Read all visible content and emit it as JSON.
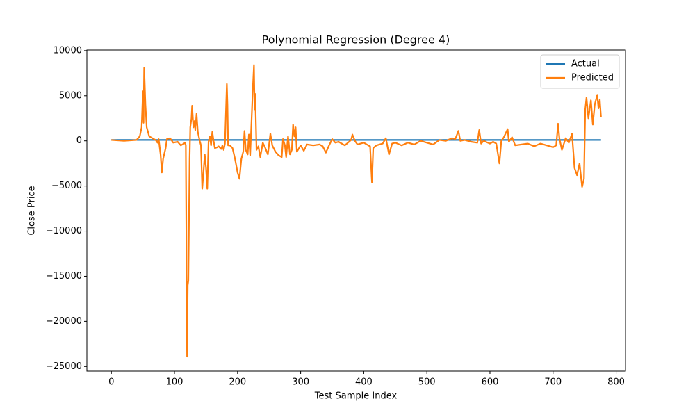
{
  "chart_data": {
    "type": "line",
    "title": "Polynomial Regression (Degree 4)",
    "x_label": "Test Sample Index",
    "y_label": "Close Price",
    "xlim": [
      -38.8,
      814.8
    ],
    "ylim": [
      -25517,
      10067
    ],
    "xticks": [
      0,
      100,
      200,
      300,
      400,
      500,
      600,
      700,
      800
    ],
    "yticks": [
      {
        "value": -25000,
        "label": "−25000"
      },
      {
        "value": -20000,
        "label": "−20000"
      },
      {
        "value": -15000,
        "label": "−15000"
      },
      {
        "value": -10000,
        "label": "−10000"
      },
      {
        "value": -5000,
        "label": "−5000"
      },
      0,
      5000,
      10000
    ],
    "legend": "upper right",
    "series": [
      {
        "name": "Actual",
        "color": "#1f77b4",
        "x": [
          0,
          776
        ],
        "values": [
          100,
          100
        ]
      },
      {
        "name": "Predicted",
        "color": "#ff7f0e",
        "x": [
          0,
          10,
          20,
          30,
          40,
          45,
          48,
          50,
          51,
          52,
          54,
          56,
          60,
          65,
          70,
          73,
          75,
          78,
          80,
          82,
          86,
          88,
          93,
          98,
          105,
          110,
          115,
          117,
          118,
          119,
          120,
          121,
          122,
          124,
          125,
          127,
          128,
          130,
          132,
          133,
          135,
          137,
          140,
          142,
          144,
          146,
          148,
          150,
          152,
          154,
          156,
          158,
          160,
          162,
          164,
          168,
          170,
          174,
          176,
          178,
          180,
          183,
          184,
          185,
          188,
          192,
          196,
          200,
          203,
          206,
          209,
          211,
          213,
          216,
          218,
          220,
          224,
          226,
          227,
          228,
          230,
          233,
          236,
          240,
          244,
          248,
          252,
          255,
          260,
          265,
          270,
          272,
          275,
          277,
          280,
          283,
          286,
          288,
          290,
          292,
          294,
          300,
          305,
          310,
          320,
          330,
          335,
          340,
          345,
          350,
          355,
          360,
          370,
          380,
          382,
          386,
          390,
          395,
          400,
          405,
          410,
          413,
          415,
          420,
          430,
          435,
          440,
          445,
          450,
          460,
          470,
          480,
          490,
          500,
          510,
          520,
          530,
          540,
          545,
          550,
          553,
          560,
          570,
          580,
          583,
          586,
          590,
          600,
          605,
          610,
          615,
          618,
          622,
          628,
          630,
          635,
          640,
          650,
          660,
          670,
          680,
          690,
          700,
          705,
          708,
          710,
          714,
          720,
          725,
          730,
          734,
          738,
          742,
          746,
          749,
          751,
          753,
          756,
          760,
          763,
          766,
          770,
          772,
          774,
          776
        ],
        "values": [
          100,
          50,
          0,
          50,
          100,
          500,
          1500,
          5500,
          2000,
          8100,
          4000,
          1500,
          500,
          300,
          100,
          -200,
          200,
          -1500,
          -3500,
          -2000,
          -800,
          200,
          300,
          -200,
          -100,
          -500,
          -300,
          -200,
          -500,
          -12000,
          -23900,
          -16000,
          -15500,
          -2000,
          1500,
          2500,
          3900,
          1500,
          2200,
          1200,
          3000,
          1000,
          0,
          -500,
          -5300,
          -3500,
          -1500,
          -3000,
          -5300,
          -100,
          500,
          -500,
          1000,
          0,
          -800,
          -700,
          -600,
          -900,
          -500,
          -1000,
          -300,
          6300,
          4000,
          -500,
          -500,
          -800,
          -2000,
          -3500,
          -4200,
          -2000,
          -1200,
          1100,
          -1000,
          -1500,
          700,
          -1600,
          5500,
          8400,
          3500,
          5200,
          -1000,
          -600,
          -1800,
          -200,
          -800,
          -1500,
          800,
          -500,
          -1200,
          -1600,
          -1800,
          200,
          -500,
          -1800,
          500,
          -1500,
          -1000,
          1800,
          500,
          1500,
          -1200,
          -500,
          -1100,
          -400,
          -500,
          -400,
          -600,
          -1300,
          -500,
          200,
          -200,
          -100,
          -500,
          100,
          700,
          0,
          -400,
          -300,
          -200,
          -400,
          -600,
          -4600,
          -800,
          -500,
          -300,
          300,
          -1500,
          -300,
          -200,
          -500,
          -200,
          -400,
          0,
          -200,
          -400,
          100,
          0,
          300,
          200,
          1100,
          0,
          100,
          -100,
          -200,
          1200,
          -300,
          0,
          -300,
          -100,
          -300,
          -2500,
          0,
          400,
          1300,
          -100,
          400,
          -500,
          -400,
          -300,
          -600,
          -300,
          -500,
          -700,
          -500,
          1900,
          300,
          -1000,
          300,
          -200,
          800,
          -3000,
          -3800,
          -2500,
          -5100,
          -4200,
          3500,
          4800,
          2500,
          4500,
          1800,
          4000,
          5100,
          3600,
          4600,
          2600
        ]
      }
    ]
  }
}
